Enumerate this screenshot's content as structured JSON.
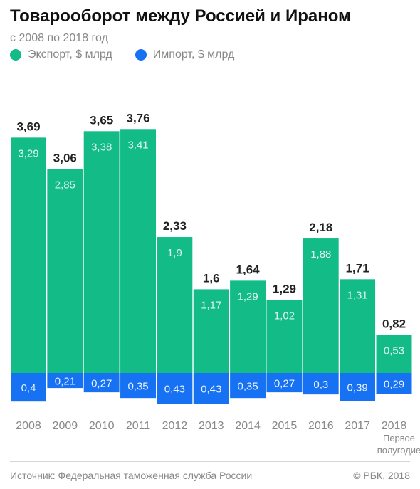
{
  "header": {
    "title": "Товарооборот между Россией и Ираном",
    "subtitle": "с 2008 по 2018 год"
  },
  "legend": {
    "export_label": "Экспорт, $ млрд",
    "import_label": "Импорт, $ млрд"
  },
  "footer": {
    "source": "Источник: Федеральная таможенная служба России",
    "copyright": "© РБК, 2018"
  },
  "colors": {
    "export": "#13bb87",
    "import": "#1672f3"
  },
  "chart_data": {
    "type": "bar",
    "stacked": true,
    "title": "Товарооборот между Россией и Ираном",
    "subtitle": "с 2008 по 2018 год",
    "categories": [
      "2008",
      "2009",
      "2010",
      "2011",
      "2012",
      "2013",
      "2014",
      "2015",
      "2016",
      "2017",
      "2018"
    ],
    "category_notes": [
      "",
      "",
      "",
      "",
      "",
      "",
      "",
      "",
      "",
      "",
      "Первое полугодие"
    ],
    "series": [
      {
        "name": "Экспорт, $ млрд",
        "values": [
          3.29,
          2.85,
          3.38,
          3.41,
          1.9,
          1.17,
          1.29,
          1.02,
          1.88,
          1.31,
          0.53
        ],
        "labels": [
          "3,29",
          "2,85",
          "3,38",
          "3,41",
          "1,9",
          "1,17",
          "1,29",
          "1,02",
          "1,88",
          "1,31",
          "0,53"
        ]
      },
      {
        "name": "Импорт, $ млрд",
        "values": [
          0.4,
          0.21,
          0.27,
          0.35,
          0.43,
          0.43,
          0.35,
          0.27,
          0.3,
          0.39,
          0.29
        ],
        "labels": [
          "0,4",
          "0,21",
          "0,27",
          "0,35",
          "0,43",
          "0,43",
          "0,35",
          "0,27",
          "0,3",
          "0,39",
          "0,29"
        ]
      }
    ],
    "totals": [
      3.69,
      3.06,
      3.65,
      3.76,
      2.33,
      1.6,
      1.64,
      1.29,
      2.18,
      1.71,
      0.82
    ],
    "total_labels": [
      "3,69",
      "3,06",
      "3,65",
      "3,76",
      "2,33",
      "1,6",
      "1,64",
      "1,29",
      "2,18",
      "1,71",
      "0,82"
    ],
    "xlabel": "",
    "ylabel": "",
    "legend_position": "top-left",
    "grid": false
  }
}
